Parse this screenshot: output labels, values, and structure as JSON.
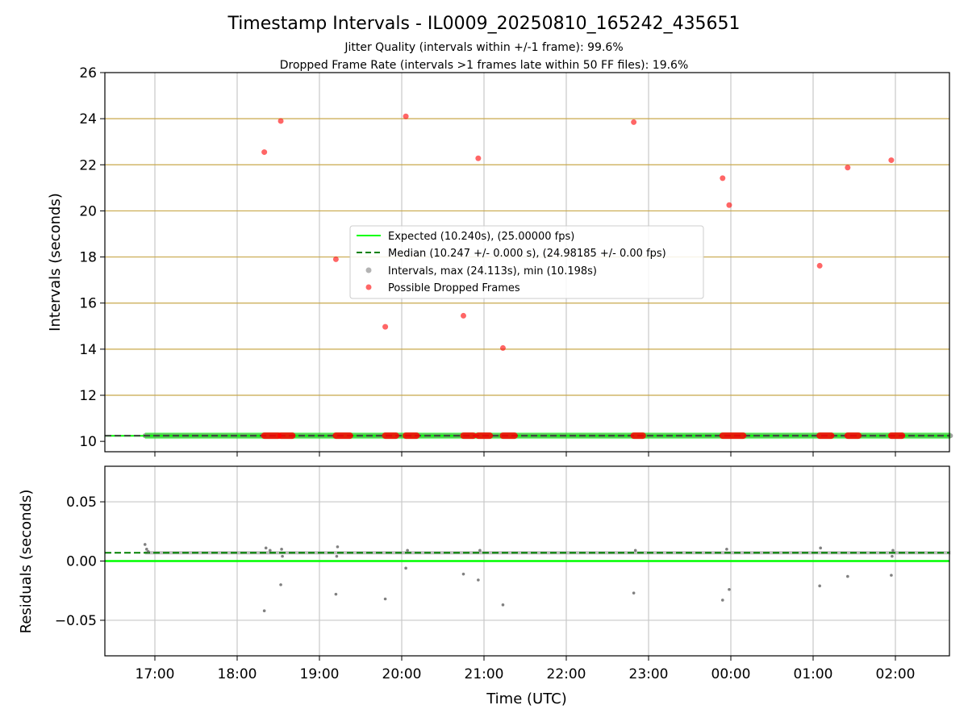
{
  "chart_data": {
    "type": "scatter",
    "title": "Timestamp Intervals - IL0009_20250810_165242_435651",
    "subtitle_1": "Jitter Quality (intervals within +/-1 frame): 99.6%",
    "subtitle_2": "Dropped Frame Rate (intervals >1 frames late within 50 FF files): 19.6%",
    "xlabel": "Time (UTC)",
    "x_ticks": [
      "17:00",
      "18:00",
      "19:00",
      "20:00",
      "21:00",
      "22:00",
      "23:00",
      "00:00",
      "01:00",
      "02:00"
    ],
    "x_range_hours": [
      16.4,
      26.67
    ],
    "grid": "on",
    "colors": {
      "expected": "#00ff00",
      "median": "#008000",
      "intervals": "#808080",
      "dropped": "#ff0000",
      "threshold_lines": "#c8a84b",
      "grid": "#c8c8c8"
    },
    "top_panel": {
      "ylabel": "Intervals (seconds)",
      "ylim": [
        9.55,
        26
      ],
      "y_ticks": [
        "10",
        "12",
        "14",
        "16",
        "18",
        "20",
        "22",
        "24",
        "26"
      ],
      "threshold_lines": [
        10.24,
        12,
        14,
        16,
        18,
        20,
        22,
        24
      ],
      "expected": 10.24,
      "median": 10.247,
      "interval_span_hours": [
        16.88,
        26.67
      ],
      "dropped_points": [
        {
          "x": 18.33,
          "y": 22.55
        },
        {
          "x": 18.53,
          "y": 23.9
        },
        {
          "x": 19.2,
          "y": 17.9
        },
        {
          "x": 19.8,
          "y": 14.97
        },
        {
          "x": 20.05,
          "y": 24.1
        },
        {
          "x": 20.75,
          "y": 15.45
        },
        {
          "x": 20.93,
          "y": 22.28
        },
        {
          "x": 21.23,
          "y": 14.05
        },
        {
          "x": 22.82,
          "y": 23.85
        },
        {
          "x": 23.9,
          "y": 21.42
        },
        {
          "x": 23.98,
          "y": 20.25
        },
        {
          "x": 25.08,
          "y": 17.62
        },
        {
          "x": 25.42,
          "y": 21.88
        },
        {
          "x": 25.95,
          "y": 22.2
        }
      ],
      "dropped_clusters_at_median": [
        [
          18.33,
          18.5
        ],
        [
          18.53,
          18.67
        ],
        [
          19.2,
          19.37
        ],
        [
          19.8,
          19.93
        ],
        [
          20.05,
          20.18
        ],
        [
          20.75,
          20.87
        ],
        [
          20.93,
          21.07
        ],
        [
          21.23,
          21.37
        ],
        [
          22.82,
          22.93
        ],
        [
          23.9,
          24.15
        ],
        [
          25.08,
          25.22
        ],
        [
          25.42,
          25.55
        ],
        [
          25.95,
          26.08
        ]
      ],
      "legend": {
        "position": "center",
        "entries": [
          {
            "label": "Expected (10.240s), (25.00000 fps)",
            "kind": "solid-line"
          },
          {
            "label": "Median (10.247 +/- 0.000 s), (24.98185 +/- 0.00 fps)",
            "kind": "dashed-line"
          },
          {
            "label": "Intervals, max (24.113s), min (10.198s)",
            "kind": "grey-dot"
          },
          {
            "label": "Possible Dropped Frames",
            "kind": "red-dot"
          }
        ]
      }
    },
    "bottom_panel": {
      "ylabel": "Residuals (seconds)",
      "ylim": [
        -0.08,
        0.08
      ],
      "y_ticks": [
        {
          "v": 0.05,
          "label": "0.05"
        },
        {
          "v": 0.0,
          "label": "0.00"
        },
        {
          "v": -0.05,
          "label": "−0.05"
        }
      ],
      "expected": 0.0,
      "median": 0.007,
      "residual_points": [
        {
          "x": 16.88,
          "y": 0.014
        },
        {
          "x": 16.9,
          "y": 0.01
        },
        {
          "x": 16.92,
          "y": 0.008
        },
        {
          "x": 18.33,
          "y": -0.042
        },
        {
          "x": 18.35,
          "y": 0.011
        },
        {
          "x": 18.4,
          "y": 0.009
        },
        {
          "x": 18.53,
          "y": -0.02
        },
        {
          "x": 18.54,
          "y": 0.01
        },
        {
          "x": 18.55,
          "y": 0.004
        },
        {
          "x": 19.2,
          "y": -0.028
        },
        {
          "x": 19.22,
          "y": 0.012
        },
        {
          "x": 19.21,
          "y": 0.004
        },
        {
          "x": 19.8,
          "y": -0.032
        },
        {
          "x": 20.05,
          "y": -0.006
        },
        {
          "x": 20.07,
          "y": 0.009
        },
        {
          "x": 20.75,
          "y": -0.011
        },
        {
          "x": 20.93,
          "y": -0.016
        },
        {
          "x": 20.95,
          "y": 0.009
        },
        {
          "x": 21.23,
          "y": -0.037
        },
        {
          "x": 22.82,
          "y": -0.027
        },
        {
          "x": 22.84,
          "y": 0.009
        },
        {
          "x": 23.9,
          "y": -0.033
        },
        {
          "x": 23.98,
          "y": -0.024
        },
        {
          "x": 23.95,
          "y": 0.01
        },
        {
          "x": 25.08,
          "y": -0.021
        },
        {
          "x": 25.09,
          "y": 0.011
        },
        {
          "x": 25.42,
          "y": -0.013
        },
        {
          "x": 25.95,
          "y": -0.012
        },
        {
          "x": 25.97,
          "y": 0.009
        },
        {
          "x": 25.96,
          "y": 0.004
        }
      ]
    }
  }
}
